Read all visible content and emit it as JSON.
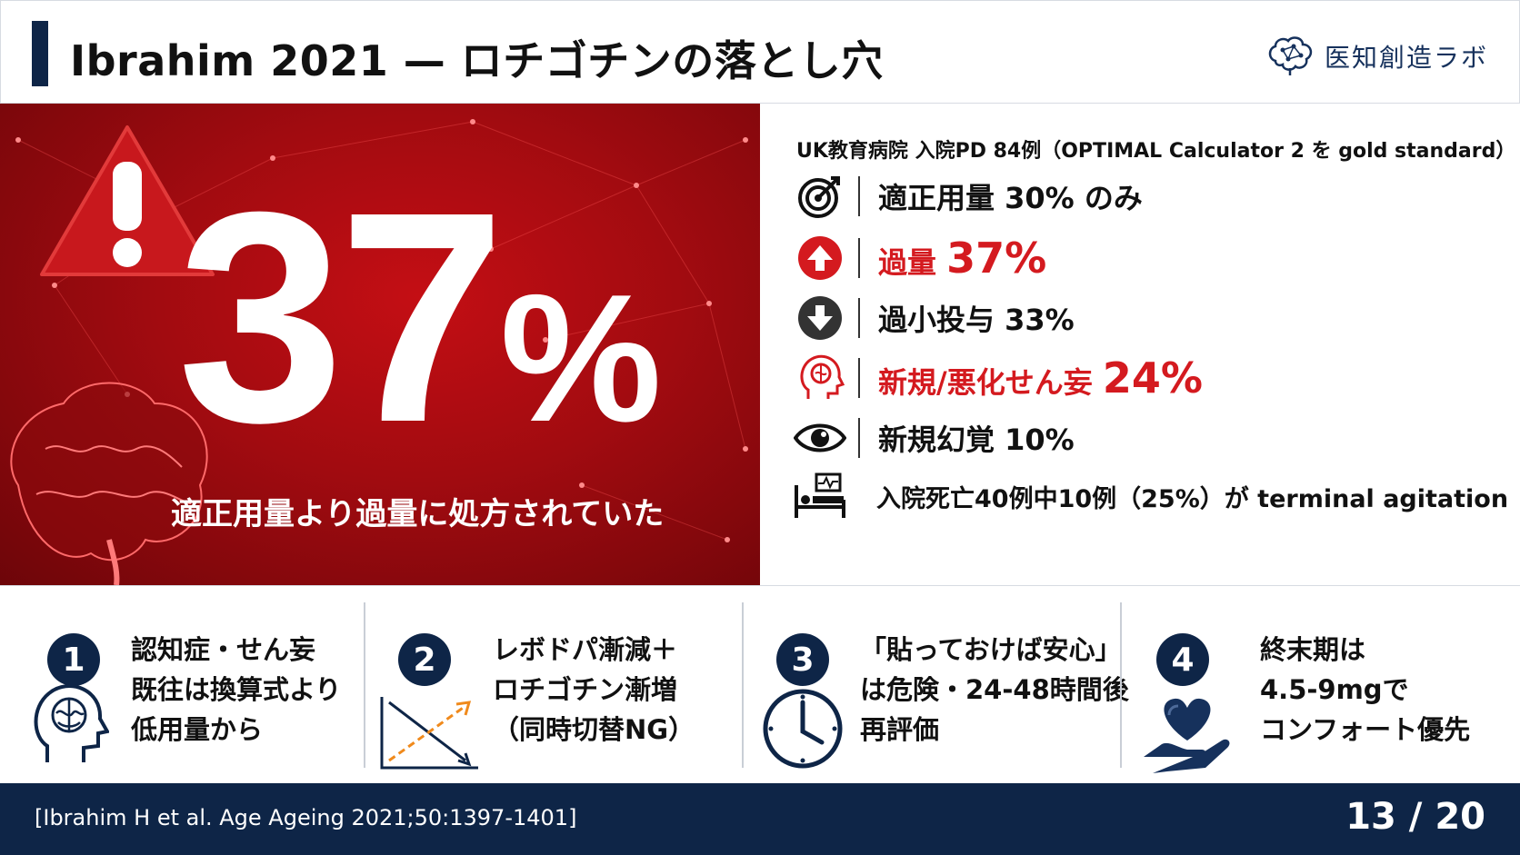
{
  "header": {
    "title": "Ibrahim 2021 — ロチゴチンの落とし穴",
    "brand": "医知創造ラボ",
    "brand_icon": "brain-network-icon"
  },
  "hero": {
    "number": "37",
    "percent_sign": "%",
    "caption": "適正用量より過量に処方されていた",
    "background_color": "#b00d12"
  },
  "stats": {
    "heading": "UK教育病院 入院PD 84例（OPTIMAL Calculator 2 を gold standard）",
    "rows": [
      {
        "icon": "target-icon",
        "text": "適正用量 30% のみ"
      },
      {
        "icon": "arrow-up-circle-icon",
        "label": "過量 ",
        "value": "37%"
      },
      {
        "icon": "arrow-down-circle-icon",
        "text": "過小投与 33%"
      },
      {
        "icon": "brain-head-icon",
        "label": "新規/悪化せん妄 ",
        "value": "24%"
      },
      {
        "icon": "eye-icon",
        "text": "新規幻覚 10%"
      },
      {
        "icon": "hospital-bed-icon",
        "text": "入院死亡40例中10例（25%）が terminal agitation"
      }
    ],
    "accent_red": "#d41a1f"
  },
  "cards": [
    {
      "num": "1",
      "icon": "brain-head-icon",
      "lines": [
        "認知症・せん妄",
        "既往は換算式より",
        "低用量から"
      ]
    },
    {
      "num": "2",
      "icon": "crossing-arrows-chart-icon",
      "lines": [
        "レボドパ漸減＋",
        "ロチゴチン漸増",
        "（同時切替NG）"
      ]
    },
    {
      "num": "3",
      "icon": "clock-icon",
      "lines": [
        "「貼っておけば安心」",
        "は危険・24-48時間後",
        "再評価"
      ]
    },
    {
      "num": "4",
      "icon": "heart-hand-icon",
      "lines": [
        "終末期は",
        "4.5-9mgで",
        "コンフォート優先"
      ]
    }
  ],
  "footer": {
    "citation": "[Ibrahim H et al. Age Ageing 2021;50:1397-1401]",
    "page": "13 / 20",
    "background_color": "#0e2547"
  }
}
